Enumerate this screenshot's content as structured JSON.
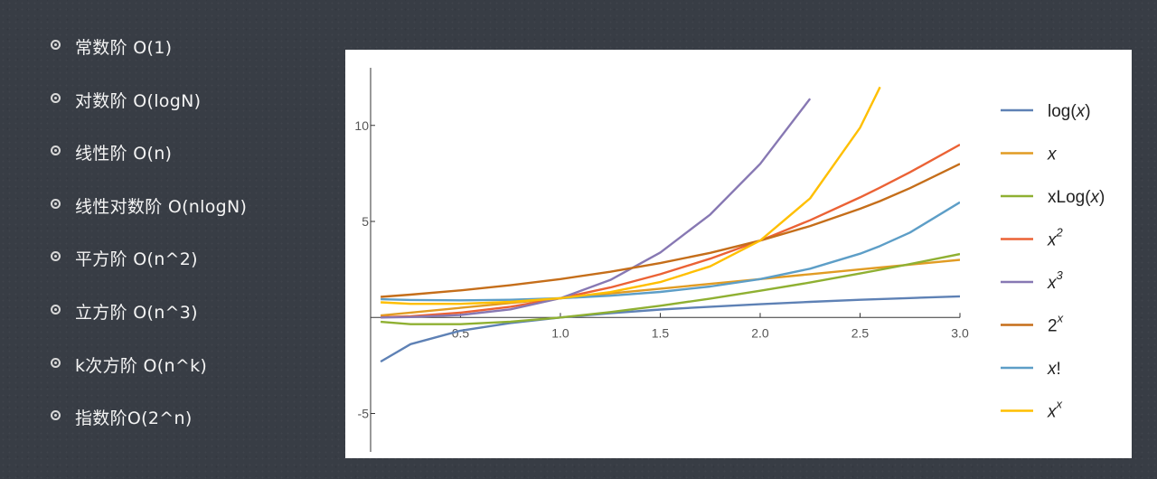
{
  "complexities": [
    {
      "label": "常数阶 O(1)"
    },
    {
      "label": "对数阶 O(logN)"
    },
    {
      "label": "线性阶 O(n)"
    },
    {
      "label": "线性对数阶 O(nlogN)"
    },
    {
      "label": "平方阶 O(n^2)"
    },
    {
      "label": "立方阶 O(n^3)"
    },
    {
      "label": "k次方阶 O(n^k)"
    },
    {
      "label": "指数阶O(2^n)"
    }
  ],
  "chart_data": {
    "type": "line",
    "title": "",
    "xlabel": "",
    "ylabel": "",
    "xlim": [
      0.05,
      3.0
    ],
    "ylim": [
      -7,
      13
    ],
    "x_ticks": [
      0.5,
      1.0,
      1.5,
      2.0,
      2.5,
      3.0
    ],
    "x_tick_labels": [
      "0.5",
      "1.0",
      "1.5",
      "2.0",
      "2.5",
      "3.0"
    ],
    "y_ticks": [
      -5,
      5,
      10
    ],
    "y_tick_labels": [
      "-5",
      "5",
      "10"
    ],
    "grid": false,
    "legend_position": "right",
    "x": [
      0.1,
      0.25,
      0.5,
      0.75,
      1.0,
      1.25,
      1.5,
      1.75,
      2.0,
      2.25,
      2.5,
      2.6,
      2.75,
      3.0
    ],
    "series": [
      {
        "name": "log(x)",
        "color": "#5e81b5",
        "values": [
          -2.3,
          -1.39,
          -0.69,
          -0.29,
          0.0,
          0.22,
          0.41,
          0.56,
          0.69,
          0.81,
          0.92,
          0.96,
          1.01,
          1.1
        ]
      },
      {
        "name": "x",
        "color": "#e19c24",
        "values": [
          0.1,
          0.25,
          0.5,
          0.75,
          1.0,
          1.25,
          1.5,
          1.75,
          2.0,
          2.25,
          2.5,
          2.6,
          2.75,
          3.0
        ]
      },
      {
        "name": "xLog(x)",
        "color": "#8fb032",
        "values": [
          -0.23,
          -0.35,
          -0.35,
          -0.22,
          0.0,
          0.28,
          0.61,
          0.98,
          1.39,
          1.82,
          2.29,
          2.48,
          2.78,
          3.3
        ]
      },
      {
        "name": "x2",
        "color": "#eb6235",
        "values": [
          0.01,
          0.06,
          0.25,
          0.56,
          1.0,
          1.56,
          2.25,
          3.06,
          4.0,
          5.06,
          6.25,
          6.76,
          7.56,
          9.0
        ]
      },
      {
        "name": "x3",
        "color": "#8778b3",
        "values": [
          0.0,
          0.02,
          0.13,
          0.42,
          1.0,
          1.95,
          3.38,
          5.36,
          8.0,
          11.39,
          null,
          null,
          null,
          null
        ]
      },
      {
        "name": "2x",
        "color": "#c56e1a",
        "values": [
          1.07,
          1.19,
          1.41,
          1.68,
          2.0,
          2.38,
          2.83,
          3.36,
          4.0,
          4.76,
          5.66,
          6.06,
          6.73,
          8.0
        ]
      },
      {
        "name": "x!",
        "color": "#5d9ec7",
        "values": [
          0.95,
          0.91,
          0.89,
          0.92,
          1.0,
          1.13,
          1.33,
          1.61,
          2.0,
          2.54,
          3.32,
          3.72,
          4.42,
          6.0
        ]
      },
      {
        "name": "xx",
        "color": "#ffbf00",
        "values": [
          0.79,
          0.71,
          0.71,
          0.81,
          1.0,
          1.32,
          1.84,
          2.66,
          4.0,
          6.2,
          9.88,
          12.0,
          null,
          null
        ]
      }
    ],
    "legend": [
      {
        "name": "log(x)",
        "base": "log(",
        "italic": "x",
        "tail": ")",
        "sup": ""
      },
      {
        "name": "x",
        "base": "",
        "italic": "x",
        "tail": "",
        "sup": ""
      },
      {
        "name": "xLog(x)",
        "base": "xLog(",
        "italic": "x",
        "tail": ")",
        "sup": ""
      },
      {
        "name": "x2",
        "base": "",
        "italic": "x",
        "tail": "",
        "sup": "2"
      },
      {
        "name": "x3",
        "base": "",
        "italic": "x",
        "tail": "",
        "sup": "3"
      },
      {
        "name": "2x",
        "base": "2",
        "italic": "",
        "tail": "",
        "sup": "x"
      },
      {
        "name": "x!",
        "base": "",
        "italic": "x",
        "tail": "!",
        "sup": ""
      },
      {
        "name": "xx",
        "base": "",
        "italic": "x",
        "tail": "",
        "sup": "x"
      }
    ]
  }
}
